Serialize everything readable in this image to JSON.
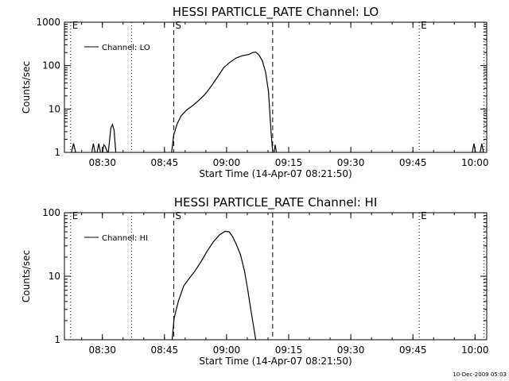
{
  "footer": {
    "timestamp": "10-Dec-2009 05:03"
  },
  "chart_data": [
    {
      "type": "line",
      "title": "HESSI PARTICLE_RATE Channel: LO",
      "xlabel": "Start Time (14-Apr-07 08:21:50)",
      "ylabel": "Counts/sec",
      "y_scale": "log",
      "xlim": [
        -1,
        101
      ],
      "ylim": [
        1,
        1000
      ],
      "x_unit": "minutes after 08:21:50",
      "xticks": [
        {
          "x": 8.17,
          "label": "08:30"
        },
        {
          "x": 23.17,
          "label": "08:45"
        },
        {
          "x": 38.17,
          "label": "09:00"
        },
        {
          "x": 53.17,
          "label": "09:15"
        },
        {
          "x": 68.17,
          "label": "09:30"
        },
        {
          "x": 83.17,
          "label": "09:45"
        },
        {
          "x": 98.17,
          "label": "10:00"
        }
      ],
      "yticks": [
        {
          "y": 1,
          "label": "1"
        },
        {
          "y": 10,
          "label": "10"
        },
        {
          "y": 100,
          "label": "100"
        },
        {
          "y": 1000,
          "label": "1000"
        }
      ],
      "legend": {
        "position": "top-left",
        "entries": [
          "Channel: LO"
        ]
      },
      "markers": [
        {
          "x": 0.5,
          "label": "E",
          "style": "dotted"
        },
        {
          "x": 15.2,
          "style": "dotted"
        },
        {
          "x": 25.4,
          "label": "S",
          "style": "dashed"
        },
        {
          "x": 49.3,
          "style": "dashed"
        },
        {
          "x": 84.7,
          "label": "E",
          "style": "dotted"
        },
        {
          "x": 100.3,
          "style": "dotted"
        }
      ],
      "series": [
        {
          "name": "Channel: LO",
          "segments": [
            [
              [
                0.7,
                1
              ],
              [
                1.2,
                1.6
              ],
              [
                1.7,
                1
              ]
            ],
            [
              [
                5.6,
                1
              ],
              [
                6.0,
                1.6
              ],
              [
                6.4,
                1
              ]
            ],
            [
              [
                6.9,
                1
              ],
              [
                7.3,
                1.6
              ],
              [
                7.7,
                1
              ]
            ],
            [
              [
                8.2,
                1
              ],
              [
                8.5,
                1.5
              ],
              [
                8.8,
                1.4
              ],
              [
                9.1,
                1.2
              ],
              [
                9.4,
                1
              ]
            ],
            [
              [
                9.6,
                1
              ],
              [
                10.2,
                3.6
              ],
              [
                10.6,
                4.4
              ],
              [
                11.0,
                3.2
              ],
              [
                11.4,
                1
              ]
            ],
            [
              [
                24.9,
                1
              ],
              [
                25.4,
                2.5
              ],
              [
                26.2,
                4.5
              ],
              [
                27.2,
                7.0
              ],
              [
                28.5,
                9.5
              ],
              [
                30,
                12
              ],
              [
                31.5,
                16
              ],
              [
                33,
                22
              ],
              [
                34.5,
                34
              ],
              [
                36,
                55
              ],
              [
                37.5,
                90
              ],
              [
                39,
                120
              ],
              [
                40.5,
                150
              ],
              [
                42,
                170
              ],
              [
                43.5,
                180
              ],
              [
                44.5,
                200
              ],
              [
                45.2,
                205
              ],
              [
                46,
                175
              ],
              [
                46.8,
                130
              ],
              [
                47.6,
                70
              ],
              [
                48.3,
                25
              ],
              [
                48.9,
                3
              ],
              [
                49.3,
                1
              ]
            ],
            [
              [
                49.6,
                1
              ],
              [
                49.9,
                1.5
              ],
              [
                50.2,
                1
              ]
            ],
            [
              [
                97.5,
                1
              ],
              [
                97.9,
                1.6
              ],
              [
                98.3,
                1
              ]
            ],
            [
              [
                99.4,
                1
              ],
              [
                99.8,
                1.6
              ],
              [
                100.2,
                1
              ]
            ]
          ]
        }
      ]
    },
    {
      "type": "line",
      "title": "HESSI PARTICLE_RATE Channel: HI",
      "xlabel": "Start Time (14-Apr-07 08:21:50)",
      "ylabel": "Counts/sec",
      "y_scale": "log",
      "xlim": [
        -1,
        101
      ],
      "ylim": [
        1,
        100
      ],
      "x_unit": "minutes after 08:21:50",
      "xticks": [
        {
          "x": 8.17,
          "label": "08:30"
        },
        {
          "x": 23.17,
          "label": "08:45"
        },
        {
          "x": 38.17,
          "label": "09:00"
        },
        {
          "x": 53.17,
          "label": "09:15"
        },
        {
          "x": 68.17,
          "label": "09:30"
        },
        {
          "x": 83.17,
          "label": "09:45"
        },
        {
          "x": 98.17,
          "label": "10:00"
        }
      ],
      "yticks": [
        {
          "y": 1,
          "label": "1"
        },
        {
          "y": 10,
          "label": "10"
        },
        {
          "y": 100,
          "label": "100"
        }
      ],
      "legend": {
        "position": "top-left",
        "entries": [
          "Channel: HI"
        ]
      },
      "markers": [
        {
          "x": 0.5,
          "label": "E",
          "style": "dotted"
        },
        {
          "x": 15.2,
          "style": "dotted"
        },
        {
          "x": 25.4,
          "label": "S",
          "style": "dashed"
        },
        {
          "x": 49.3,
          "style": "dashed"
        },
        {
          "x": 84.7,
          "label": "E",
          "style": "dotted"
        },
        {
          "x": 100.3,
          "style": "dotted"
        }
      ],
      "series": [
        {
          "name": "Channel: HI",
          "segments": [
            [
              [
                25.0,
                1
              ],
              [
                25.5,
                2.2
              ],
              [
                26.5,
                4
              ],
              [
                27.8,
                7
              ],
              [
                29,
                9
              ],
              [
                30.5,
                12
              ],
              [
                32,
                17
              ],
              [
                33.5,
                25
              ],
              [
                35,
                35
              ],
              [
                36.5,
                45
              ],
              [
                37.8,
                51
              ],
              [
                38.8,
                50
              ],
              [
                39.6,
                42
              ],
              [
                40.5,
                32
              ],
              [
                41.5,
                22
              ],
              [
                42.5,
                12
              ],
              [
                43.3,
                6
              ],
              [
                44,
                3
              ],
              [
                44.7,
                1.6
              ],
              [
                45.2,
                1
              ]
            ]
          ]
        }
      ]
    }
  ]
}
